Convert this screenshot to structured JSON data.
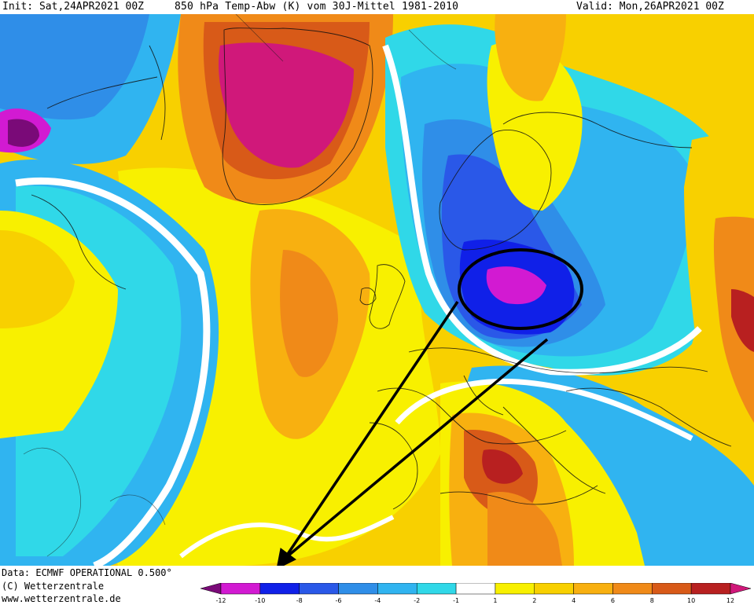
{
  "header": {
    "init": "Init: Sat,24APR2021 00Z",
    "title": "850 hPa Temp-Abw (K) vom 30J-Mittel 1981-2010",
    "valid": "Valid: Mon,26APR2021 00Z"
  },
  "footer": {
    "data_source": "Data: ECMWF OPERATIONAL 0.500°",
    "copyright": "(C) Wetterzentrale",
    "website": "www.wetterzentrale.de"
  },
  "legend": {
    "labels": [
      "-12",
      "-10",
      "-8",
      "-6",
      "-4",
      "-2",
      "-1",
      "1",
      "2",
      "4",
      "6",
      "8",
      "10",
      "12"
    ],
    "colors": [
      "#7a0a78",
      "#d21ad2",
      "#1020e8",
      "#2a58e8",
      "#2f8ee8",
      "#30b4f0",
      "#30d8e8",
      "#ffffff",
      "#f8f000",
      "#f8d000",
      "#f8b010",
      "#f08a18",
      "#d85a18",
      "#b82020",
      "#d0187a"
    ]
  },
  "map": {
    "colors": {
      "strong_cold": "#7a0a78",
      "cold_magenta": "#d21ad2",
      "deep_blue": "#1020e8",
      "blue": "#2a58e8",
      "mid_blue": "#2f8ee8",
      "light_blue": "#30b4f0",
      "cyan": "#30d8e8",
      "neutral": "#ffffff",
      "yellow": "#f8f000",
      "gold": "#f8d000",
      "orange": "#f8b010",
      "dark_orange": "#f08a18",
      "red_orange": "#d85a18",
      "dark_red": "#b82020",
      "warm_magenta": "#d0187a"
    },
    "annotation": {
      "shape": "ellipse",
      "arrow_count": 2,
      "color": "#000000"
    }
  }
}
